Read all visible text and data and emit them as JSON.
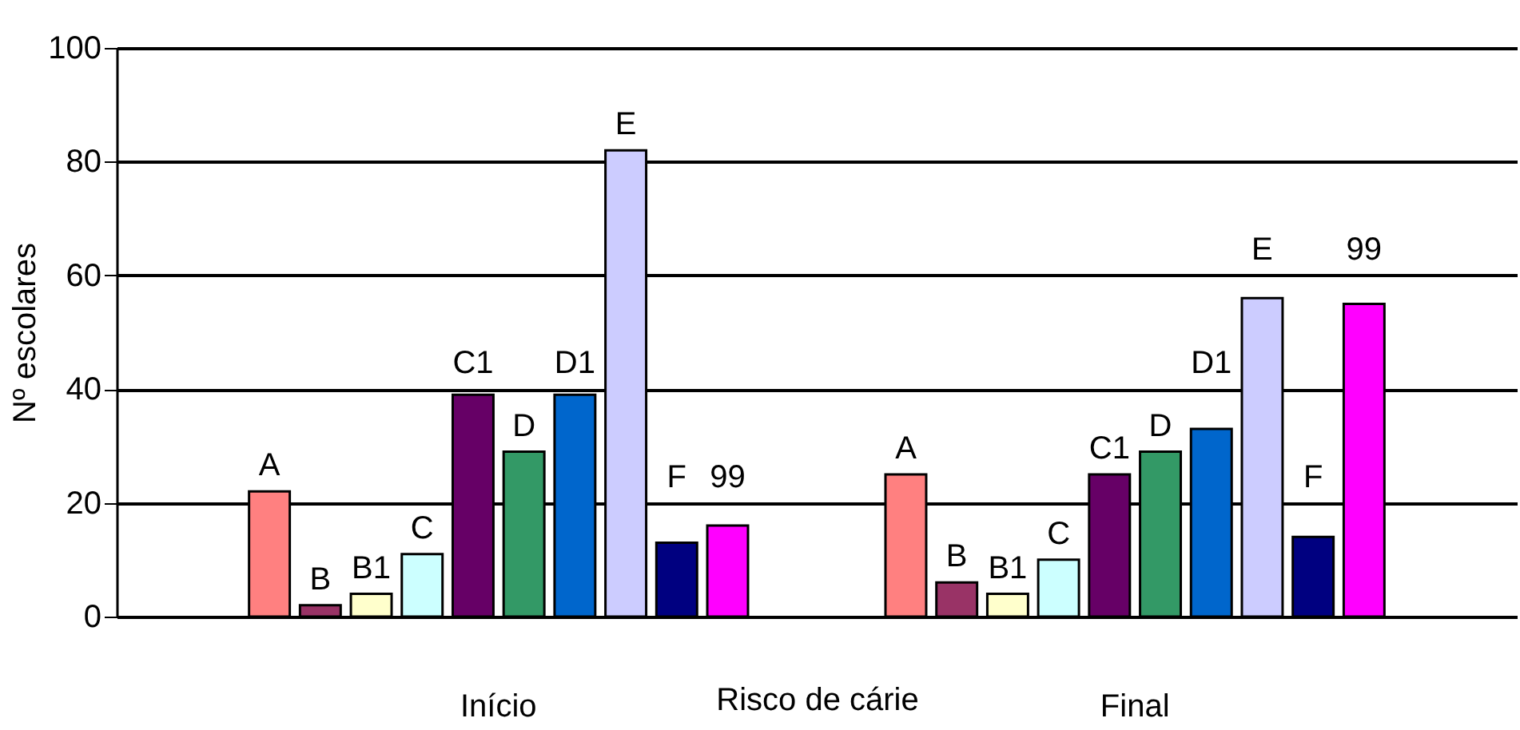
{
  "chart_data": {
    "type": "bar",
    "xlabel": "Risco de cárie",
    "ylabel": "Nº escolares",
    "categories": [
      "Início",
      "Final"
    ],
    "series": [
      {
        "name": "A",
        "color": "#ff8080",
        "values": [
          22,
          25
        ]
      },
      {
        "name": "B",
        "color": "#993366",
        "values": [
          2,
          6
        ]
      },
      {
        "name": "B1",
        "color": "#ffffcc",
        "values": [
          4,
          4
        ]
      },
      {
        "name": "C",
        "color": "#ccffff",
        "values": [
          11,
          10
        ]
      },
      {
        "name": "C1",
        "color": "#660066",
        "values": [
          39,
          25
        ]
      },
      {
        "name": "D",
        "color": "#339966",
        "values": [
          29,
          29
        ]
      },
      {
        "name": "D1",
        "color": "#0066cc",
        "values": [
          39,
          33
        ]
      },
      {
        "name": "E",
        "color": "#ccccff",
        "values": [
          82,
          56
        ]
      },
      {
        "name": "F",
        "color": "#000080",
        "values": [
          13,
          14
        ]
      },
      {
        "name": "99",
        "color": "#ff00ff",
        "values": [
          16,
          55
        ]
      }
    ],
    "ylim": [
      0,
      100
    ],
    "yticks": [
      0,
      20,
      40,
      60,
      80,
      100
    ],
    "grid": "y",
    "legend": false
  }
}
